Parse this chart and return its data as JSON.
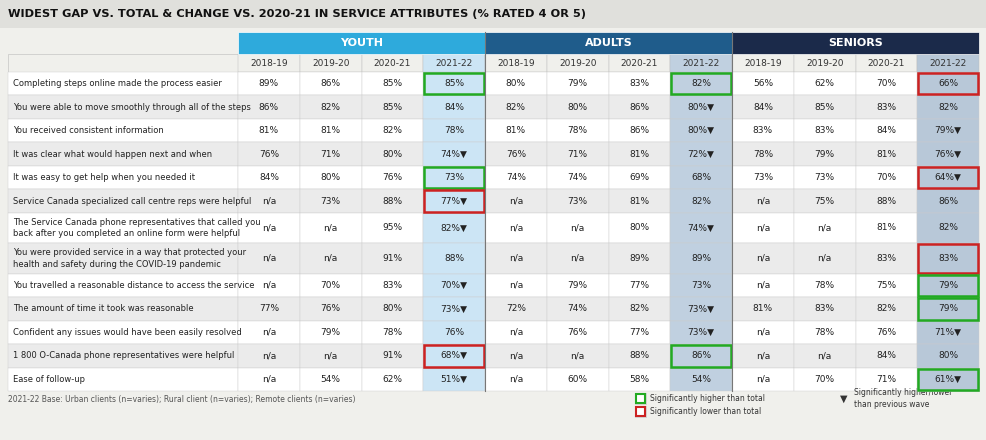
{
  "title": "WIDEST GAP VS. TOTAL & CHANGE VS. 2020-21 IN SERVICE ATTRIBUTES (% RATED 4 OR 5)",
  "group_headers": [
    "YOUTH",
    "ADULTS",
    "SENIORS"
  ],
  "group_colors": [
    "#2eaadc",
    "#1f5c8b",
    "#1b2a4a"
  ],
  "col_headers": [
    "2018-19",
    "2019-20",
    "2020-21",
    "2021-22"
  ],
  "rows": [
    {
      "label": "Completing steps online made the process easier",
      "data": [
        "89%",
        "86%",
        "85%",
        "85%",
        "80%",
        "79%",
        "83%",
        "82%",
        "56%",
        "62%",
        "70%",
        "66%"
      ],
      "highlight": [
        {
          "col": 3,
          "type": "green"
        },
        {
          "col": 7,
          "type": "green"
        },
        {
          "col": 11,
          "type": "red"
        }
      ]
    },
    {
      "label": "You were able to move smoothly through all of the steps",
      "data": [
        "86%",
        "82%",
        "85%",
        "84%",
        "82%",
        "80%",
        "86%",
        "80%▼",
        "84%",
        "85%",
        "83%",
        "82%"
      ],
      "highlight": []
    },
    {
      "label": "You received consistent information",
      "data": [
        "81%",
        "81%",
        "82%",
        "78%",
        "81%",
        "78%",
        "86%",
        "80%▼",
        "83%",
        "83%",
        "84%",
        "79%▼"
      ],
      "highlight": []
    },
    {
      "label": "It was clear what would happen next and when",
      "data": [
        "76%",
        "71%",
        "80%",
        "74%▼",
        "76%",
        "71%",
        "81%",
        "72%▼",
        "78%",
        "79%",
        "81%",
        "76%▼"
      ],
      "highlight": []
    },
    {
      "label": "It was easy to get help when you needed it",
      "data": [
        "84%",
        "80%",
        "76%",
        "73%",
        "74%",
        "74%",
        "69%",
        "68%",
        "73%",
        "73%",
        "70%",
        "64%▼"
      ],
      "highlight": [
        {
          "col": 3,
          "type": "green"
        },
        {
          "col": 11,
          "type": "red"
        }
      ]
    },
    {
      "label": "Service Canada specialized call centre reps were helpful",
      "data": [
        "n/a",
        "73%",
        "88%",
        "77%▼",
        "n/a",
        "73%",
        "81%",
        "82%",
        "n/a",
        "75%",
        "88%",
        "86%"
      ],
      "highlight": [
        {
          "col": 3,
          "type": "red"
        }
      ]
    },
    {
      "label": "The Service Canada phone representatives that called you\nback after you completed an online form were helpful",
      "data": [
        "n/a",
        "n/a",
        "95%",
        "82%▼",
        "n/a",
        "n/a",
        "80%",
        "74%▼",
        "n/a",
        "n/a",
        "81%",
        "82%"
      ],
      "highlight": []
    },
    {
      "label": "You were provided service in a way that protected your\nhealth and safety during the COVID-19 pandemic",
      "data": [
        "n/a",
        "n/a",
        "91%",
        "88%",
        "n/a",
        "n/a",
        "89%",
        "89%",
        "n/a",
        "n/a",
        "83%",
        "83%"
      ],
      "highlight": [
        {
          "col": 11,
          "type": "red"
        }
      ]
    },
    {
      "label": "You travelled a reasonable distance to access the service",
      "data": [
        "n/a",
        "70%",
        "83%",
        "70%▼",
        "n/a",
        "79%",
        "77%",
        "73%",
        "n/a",
        "78%",
        "75%",
        "79%"
      ],
      "highlight": [
        {
          "col": 11,
          "type": "green"
        }
      ]
    },
    {
      "label": "The amount of time it took was reasonable",
      "data": [
        "77%",
        "76%",
        "80%",
        "73%▼",
        "72%",
        "74%",
        "82%",
        "73%▼",
        "81%",
        "83%",
        "82%",
        "79%"
      ],
      "highlight": [
        {
          "col": 11,
          "type": "green"
        }
      ]
    },
    {
      "label": "Confident any issues would have been easily resolved",
      "data": [
        "n/a",
        "79%",
        "78%",
        "76%",
        "n/a",
        "76%",
        "77%",
        "73%▼",
        "n/a",
        "78%",
        "76%",
        "71%▼"
      ],
      "highlight": []
    },
    {
      "label": "1 800 O-Canada phone representatives were helpful",
      "data": [
        "n/a",
        "n/a",
        "91%",
        "68%▼",
        "n/a",
        "n/a",
        "88%",
        "86%",
        "n/a",
        "n/a",
        "84%",
        "80%"
      ],
      "highlight": [
        {
          "col": 3,
          "type": "red"
        },
        {
          "col": 7,
          "type": "green"
        }
      ]
    },
    {
      "label": "Ease of follow-up",
      "data": [
        "n/a",
        "54%",
        "62%",
        "51%▼",
        "n/a",
        "60%",
        "58%",
        "54%",
        "n/a",
        "70%",
        "71%",
        "61%▼"
      ],
      "highlight": [
        {
          "col": 11,
          "type": "green"
        }
      ]
    }
  ],
  "footer": "2021-22 Base: Urban clients (n=varies); Rural client (n=varies); Remote clients (n=varies)",
  "bg_color": "#f0f0ec",
  "row_colors": [
    "#ffffff",
    "#ebebeb"
  ],
  "last_col_colors": [
    "#cce5f5",
    "#c0d0e0",
    "#b8c8d8"
  ],
  "title_bg": "#e0e0dc"
}
